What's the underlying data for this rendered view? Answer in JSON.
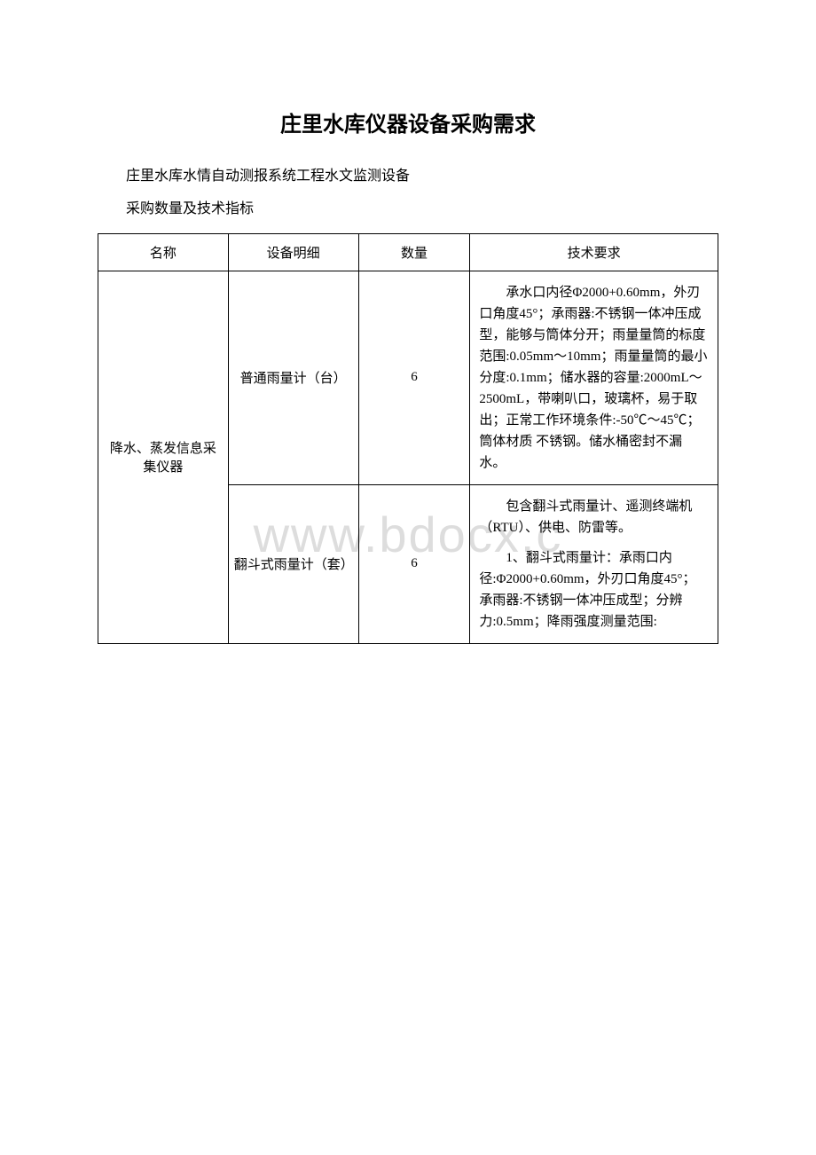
{
  "document": {
    "title": "庄里水库仪器设备采购需求",
    "subtitle1": "庄里水库水情自动测报系统工程水文监测设备",
    "subtitle2": "采购数量及技术指标"
  },
  "watermark": "www.bdocx.c",
  "table": {
    "headers": {
      "col1": "名称",
      "col2": "设备明细",
      "col3": "数量",
      "col4": "技术要求"
    },
    "body": {
      "category_name": "降水、蒸发信息采集仪器",
      "rows": [
        {
          "detail": "普通雨量计（台）",
          "qty": "6",
          "req": "承水口内径Φ2000+0.60mm，外刃口角度45°；承雨器:不锈钢一体冲压成型，能够与筒体分开；雨量量筒的标度范围:0.05mm～10mm；雨量量筒的最小分度:0.1mm；储水器的容量:2000mL～2500mL，带喇叭口，玻璃杯，易于取出；正常工作环境条件:-50℃～45℃；筒体材质 不锈钢。储水桶密封不漏水。"
        },
        {
          "detail": "翻斗式雨量计（套）",
          "qty": "6",
          "req_p1": "包含翻斗式雨量计、遥测终端机（RTU）、供电、防雷等。",
          "req_p2": "1、翻斗式雨量计：承雨口内径:Φ2000+0.60mm，外刃口角度45°；承雨器:不锈钢一体冲压成型；分辨力:0.5mm；降雨强度测量范围:"
        }
      ]
    }
  }
}
